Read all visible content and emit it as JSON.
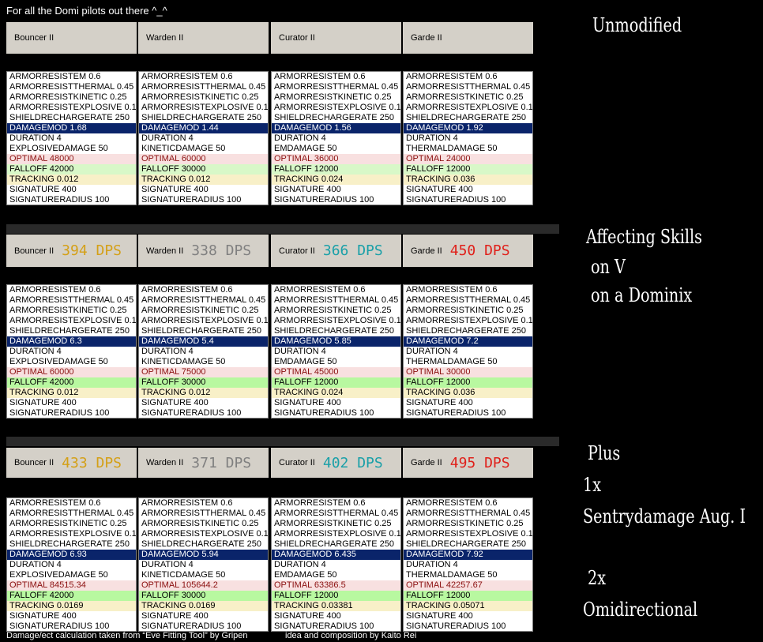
{
  "title": "For all the Domi pilots out there ^_^",
  "footer": [
    "Damage/ect calculation taken from “Eve Fitting Tool” by Gripen",
    "idea and composition by Kaito Rei"
  ],
  "sections": [
    {
      "notes": [
        "Unmodified"
      ],
      "headers": [
        {
          "name": "Bouncer II"
        },
        {
          "name": "Warden II"
        },
        {
          "name": "Curator II"
        },
        {
          "name": "Garde II"
        }
      ],
      "lists": [
        [
          "ARMORRESISTEM 0.6",
          "ARMORRESISTTHERMAL 0.45",
          "ARMORRESISTKINETIC 0.25",
          "ARMORRESISTEXPLOSIVE 0.1",
          "SHIELDRECHARGERATE 250",
          "DAMAGEMOD 1.68",
          "DURATION 4",
          "EXPLOSIVEDAMAGE 50",
          "OPTIMAL 48000",
          "FALLOFF 42000",
          "TRACKING 0.012",
          "SIGNATURE 400",
          "SIGNATURERADIUS 100"
        ],
        [
          "ARMORRESISTEM 0.6",
          "ARMORRESISTTHERMAL 0.45",
          "ARMORRESISTKINETIC 0.25",
          "ARMORRESISTEXPLOSIVE 0.1",
          "SHIELDRECHARGERATE 250",
          "DAMAGEMOD 1.44",
          "DURATION 4",
          "KINETICDAMAGE 50",
          "OPTIMAL 60000",
          "FALLOFF 30000",
          "TRACKING 0.012",
          "SIGNATURE 400",
          "SIGNATURERADIUS 100"
        ],
        [
          "ARMORRESISTEM 0.6",
          "ARMORRESISTTHERMAL 0.45",
          "ARMORRESISTKINETIC 0.25",
          "ARMORRESISTEXPLOSIVE 0.1",
          "SHIELDRECHARGERATE 250",
          "DAMAGEMOD 1.56",
          "DURATION 4",
          "EMDAMAGE 50",
          "OPTIMAL 36000",
          "FALLOFF 12000",
          "TRACKING 0.024",
          "SIGNATURE 400",
          "SIGNATURERADIUS 100"
        ],
        [
          "ARMORRESISTEM 0.6",
          "ARMORRESISTTHERMAL 0.45",
          "ARMORRESISTKINETIC 0.25",
          "ARMORRESISTEXPLOSIVE 0.1",
          "SHIELDRECHARGERATE 250",
          "DAMAGEMOD 1.92",
          "DURATION 4",
          "THERMALDAMAGE 50",
          "OPTIMAL 24000",
          "FALLOFF 12000",
          "TRACKING 0.036",
          "SIGNATURE 400",
          "SIGNATURERADIUS 100"
        ]
      ]
    },
    {
      "notes": [
        "Affecting Skills",
        "on V",
        "on a Dominix"
      ],
      "headers": [
        {
          "name": "Bouncer II",
          "dps": "394 DPS"
        },
        {
          "name": "Warden II",
          "dps": "338 DPS"
        },
        {
          "name": "Curator II",
          "dps": "366 DPS"
        },
        {
          "name": "Garde II",
          "dps": "450 DPS"
        }
      ],
      "lists": [
        [
          "ARMORRESISTEM 0.6",
          "ARMORRESISTTHERMAL 0.45",
          "ARMORRESISTKINETIC 0.25",
          "ARMORRESISTEXPLOSIVE 0.1",
          "SHIELDRECHARGERATE 250",
          "DAMAGEMOD 6.3",
          "DURATION 4",
          "EXPLOSIVEDAMAGE 50",
          "OPTIMAL 60000",
          "FALLOFF 42000",
          "TRACKING 0.012",
          "SIGNATURE 400",
          "SIGNATURERADIUS 100"
        ],
        [
          "ARMORRESISTEM 0.6",
          "ARMORRESISTTHERMAL 0.45",
          "ARMORRESISTKINETIC 0.25",
          "ARMORRESISTEXPLOSIVE 0.1",
          "SHIELDRECHARGERATE 250",
          "DAMAGEMOD 5.4",
          "DURATION 4",
          "KINETICDAMAGE 50",
          "OPTIMAL 75000",
          "FALLOFF 30000",
          "TRACKING 0.012",
          "SIGNATURE 400",
          "SIGNATURERADIUS 100"
        ],
        [
          "ARMORRESISTEM 0.6",
          "ARMORRESISTTHERMAL 0.45",
          "ARMORRESISTKINETIC 0.25",
          "ARMORRESISTEXPLOSIVE 0.1",
          "SHIELDRECHARGERATE 250",
          "DAMAGEMOD 5.85",
          "DURATION 4",
          "EMDAMAGE 50",
          "OPTIMAL 45000",
          "FALLOFF 12000",
          "TRACKING 0.024",
          "SIGNATURE 400",
          "SIGNATURERADIUS 100"
        ],
        [
          "ARMORRESISTEM 0.6",
          "ARMORRESISTTHERMAL 0.45",
          "ARMORRESISTKINETIC 0.25",
          "ARMORRESISTEXPLOSIVE 0.1",
          "SHIELDRECHARGERATE 250",
          "DAMAGEMOD 7.2",
          "DURATION 4",
          "THERMALDAMAGE 50",
          "OPTIMAL 30000",
          "FALLOFF 12000",
          "TRACKING 0.036",
          "SIGNATURE 400",
          "SIGNATURERADIUS 100"
        ]
      ]
    },
    {
      "notes": [
        "Plus",
        "1x",
        "Sentrydamage Aug. I",
        "2x",
        "Omidirectional"
      ],
      "headers": [
        {
          "name": "Bouncer II",
          "dps": "433 DPS"
        },
        {
          "name": "Warden II",
          "dps": "371 DPS"
        },
        {
          "name": "Curator II",
          "dps": "402 DPS"
        },
        {
          "name": "Garde II",
          "dps": "495 DPS"
        }
      ],
      "lists": [
        [
          "ARMORRESISTEM 0.6",
          "ARMORRESISTTHERMAL 0.45",
          "ARMORRESISTKINETIC 0.25",
          "ARMORRESISTEXPLOSIVE 0.1",
          "SHIELDRECHARGERATE 250",
          "DAMAGEMOD 6.93",
          "DURATION 4",
          "EXPLOSIVEDAMAGE 50",
          "OPTIMAL 84515.34",
          "FALLOFF 42000",
          "TRACKING 0.0169",
          "SIGNATURE 400",
          "SIGNATURERADIUS 100"
        ],
        [
          "ARMORRESISTEM 0.6",
          "ARMORRESISTTHERMAL 0.45",
          "ARMORRESISTKINETIC 0.25",
          "ARMORRESISTEXPLOSIVE 0.1",
          "SHIELDRECHARGERATE 250",
          "DAMAGEMOD 5.94",
          "DURATION 4",
          "KINETICDAMAGE 50",
          "OPTIMAL 105644.2",
          "FALLOFF 30000",
          "TRACKING 0.0169",
          "SIGNATURE 400",
          "SIGNATURERADIUS 100"
        ],
        [
          "ARMORRESISTEM 0.6",
          "ARMORRESISTTHERMAL 0.45",
          "ARMORRESISTKINETIC 0.25",
          "ARMORRESISTEXPLOSIVE 0.1",
          "SHIELDRECHARGERATE 250",
          "DAMAGEMOD 6.435",
          "DURATION 4",
          "EMDAMAGE 50",
          "OPTIMAL 63386.5",
          "FALLOFF 12000",
          "TRACKING 0.03381",
          "SIGNATURE 400",
          "SIGNATURERADIUS 100"
        ],
        [
          "ARMORRESISTEM 0.6",
          "ARMORRESISTTHERMAL 0.45",
          "ARMORRESISTKINETIC 0.25",
          "ARMORRESISTEXPLOSIVE 0.1",
          "SHIELDRECHARGERATE 250",
          "DAMAGEMOD 7.92",
          "DURATION 4",
          "THERMALDAMAGE 50",
          "OPTIMAL 42257.67",
          "FALLOFF 12000",
          "TRACKING 0.05071",
          "SIGNATURE 400",
          "SIGNATURERADIUS 100"
        ]
      ]
    }
  ]
}
